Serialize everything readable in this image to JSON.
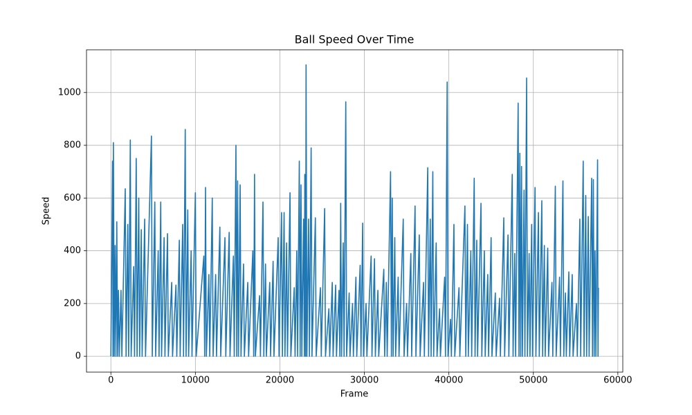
{
  "chart_data": {
    "type": "line",
    "title": "Ball Speed Over Time",
    "xlabel": "Frame",
    "ylabel": "Speed",
    "color": "#1f77b4",
    "grid": true,
    "xlim": [
      -2885,
      60585
    ],
    "ylim": [
      -60,
      1162
    ],
    "xticks": [
      0,
      10000,
      20000,
      30000,
      40000,
      50000,
      60000
    ],
    "yticks": [
      0,
      200,
      400,
      600,
      800,
      1000
    ],
    "x": [
      0,
      200,
      250,
      300,
      400,
      500,
      600,
      700,
      800,
      900,
      1000,
      1200,
      1300,
      1700,
      1800,
      2000,
      2100,
      2300,
      2400,
      2700,
      2800,
      3000,
      3100,
      3300,
      3400,
      3600,
      3700,
      4000,
      4100,
      4800,
      4900,
      5200,
      5300,
      5600,
      5700,
      5900,
      6000,
      6300,
      6400,
      6700,
      6800,
      7200,
      7300,
      7700,
      7800,
      8100,
      8200,
      8500,
      8600,
      8800,
      8900,
      9100,
      9200,
      9500,
      9600,
      10000,
      10100,
      11000,
      11100,
      11200,
      11300,
      11600,
      11700,
      12000,
      12100,
      12400,
      12500,
      12900,
      13000,
      13500,
      13600,
      14000,
      14100,
      14500,
      14600,
      14800,
      14900,
      15000,
      15100,
      15300,
      15400,
      15700,
      15800,
      16200,
      16300,
      16800,
      16900,
      17000,
      17100,
      17600,
      17700,
      18000,
      18100,
      18300,
      18400,
      18800,
      18900,
      19200,
      19300,
      19800,
      19900,
      20200,
      20300,
      20500,
      20600,
      20800,
      20900,
      21200,
      21300,
      21700,
      21800,
      22000,
      22100,
      22300,
      22400,
      22500,
      22600,
      22800,
      22900,
      22950,
      23050,
      23100,
      23200,
      23400,
      23500,
      23700,
      23800,
      24200,
      24300,
      24800,
      24900,
      25300,
      25400,
      25800,
      25900,
      26200,
      26300,
      26600,
      26700,
      27000,
      27100,
      27200,
      27300,
      27500,
      27600,
      27800,
      27900,
      28200,
      28300,
      28600,
      28700,
      29000,
      29100,
      29500,
      29600,
      29800,
      29900,
      30200,
      30300,
      30800,
      30900,
      31200,
      31300,
      31600,
      31700,
      32300,
      32400,
      32600,
      32700,
      33100,
      33200,
      33300,
      33400,
      33600,
      33700,
      34000,
      34100,
      34600,
      34700,
      35000,
      35100,
      35500,
      35600,
      36000,
      36100,
      36500,
      36600,
      37000,
      37100,
      37500,
      37600,
      37800,
      37900,
      38100,
      38200,
      38500,
      38600,
      38900,
      39000,
      39500,
      39600,
      39800,
      39900,
      40200,
      40300,
      40600,
      40700,
      41200,
      41300,
      41900,
      42000,
      42200,
      42300,
      42600,
      42700,
      43000,
      43100,
      43300,
      43400,
      43800,
      43900,
      44200,
      44300,
      44600,
      44700,
      45000,
      45100,
      45500,
      45600,
      46000,
      46100,
      46500,
      46600,
      47000,
      47100,
      47500,
      47600,
      47800,
      47900,
      48200,
      48300,
      48400,
      48500,
      48600,
      48700,
      48900,
      49000,
      49200,
      49300,
      49500,
      49600,
      49800,
      49900,
      50200,
      50300,
      50600,
      50700,
      51000,
      51100,
      51300,
      51400,
      51700,
      51800,
      52200,
      52300,
      52600,
      52700,
      53100,
      53200,
      53500,
      53600,
      53800,
      53900,
      54200,
      54300,
      54600,
      54700,
      55100,
      55200,
      55500,
      55600,
      55900,
      56000,
      56200,
      56300,
      56500,
      56600,
      56900,
      57000,
      57100,
      57200,
      57300,
      57400,
      57600,
      57650,
      57700
    ],
    "values": [
      0,
      740,
      0,
      810,
      0,
      420,
      0,
      510,
      0,
      250,
      0,
      250,
      0,
      635,
      0,
      500,
      0,
      820,
      0,
      340,
      0,
      750,
      0,
      600,
      0,
      480,
      0,
      520,
      0,
      835,
      0,
      585,
      0,
      400,
      0,
      585,
      0,
      450,
      0,
      465,
      0,
      280,
      0,
      270,
      0,
      440,
      0,
      500,
      0,
      860,
      0,
      555,
      0,
      400,
      0,
      620,
      0,
      380,
      0,
      640,
      0,
      310,
      0,
      600,
      0,
      310,
      0,
      490,
      0,
      450,
      0,
      470,
      0,
      380,
      0,
      800,
      0,
      665,
      0,
      650,
      0,
      350,
      0,
      280,
      0,
      400,
      0,
      690,
      0,
      230,
      0,
      585,
      0,
      350,
      0,
      280,
      0,
      360,
      0,
      450,
      0,
      545,
      0,
      545,
      0,
      430,
      0,
      620,
      0,
      260,
      0,
      400,
      0,
      740,
      0,
      650,
      0,
      520,
      0,
      690,
      0,
      1105,
      0,
      520,
      0,
      790,
      0,
      525,
      0,
      260,
      0,
      560,
      0,
      180,
      0,
      280,
      0,
      270,
      0,
      250,
      0,
      580,
      0,
      430,
      0,
      965,
      0,
      240,
      0,
      200,
      0,
      300,
      0,
      345,
      0,
      505,
      0,
      200,
      0,
      380,
      0,
      370,
      0,
      250,
      0,
      330,
      0,
      280,
      0,
      700,
      0,
      600,
      0,
      450,
      0,
      300,
      0,
      520,
      0,
      200,
      0,
      390,
      0,
      570,
      0,
      460,
      0,
      280,
      0,
      715,
      0,
      520,
      0,
      700,
      0,
      430,
      0,
      180,
      0,
      300,
      0,
      1040,
      0,
      140,
      0,
      500,
      0,
      260,
      0,
      570,
      0,
      500,
      0,
      400,
      0,
      675,
      0,
      440,
      0,
      580,
      0,
      400,
      0,
      310,
      0,
      450,
      0,
      240,
      0,
      220,
      0,
      525,
      0,
      460,
      0,
      690,
      0,
      390,
      0,
      960,
      0,
      770,
      0,
      720,
      0,
      630,
      0,
      1055,
      0,
      390,
      0,
      500,
      0,
      640,
      0,
      545,
      0,
      590,
      0,
      420,
      0,
      410,
      0,
      280,
      0,
      645,
      0,
      300,
      0,
      665,
      0,
      240,
      0,
      320,
      0,
      310,
      0,
      200,
      0,
      520,
      0,
      740,
      0,
      610,
      0,
      530,
      0,
      675,
      0,
      670,
      0,
      400,
      0,
      745,
      0,
      260
    ]
  }
}
